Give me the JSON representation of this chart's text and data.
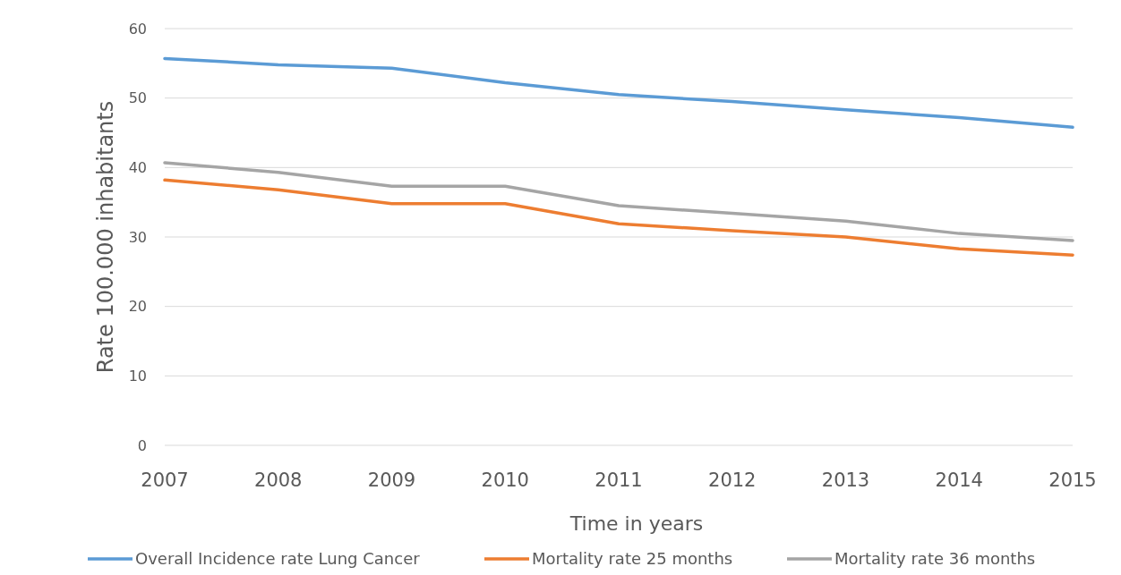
{
  "chart_data": {
    "type": "line",
    "xlabel": "Time in years",
    "ylabel": "Rate 100.000 inhabitants",
    "categories": [
      "2007",
      "2008",
      "2009",
      "2010",
      "2011",
      "2012",
      "2013",
      "2014",
      "2015"
    ],
    "series": [
      {
        "name": "Overall Incidence rate Lung Cancer",
        "color": "#5b9bd5",
        "values": [
          55.7,
          54.8,
          54.3,
          52.2,
          50.5,
          49.5,
          48.3,
          47.2,
          45.8
        ]
      },
      {
        "name": "Mortality rate 25 months",
        "color": "#ed7d31",
        "values": [
          38.2,
          36.8,
          34.8,
          34.8,
          31.9,
          30.9,
          30.0,
          28.3,
          27.4
        ]
      },
      {
        "name": "Mortality rate 36 months",
        "color": "#a5a5a5",
        "values": [
          40.7,
          39.3,
          37.3,
          37.3,
          34.5,
          33.4,
          32.3,
          30.5,
          29.5
        ]
      }
    ],
    "ylim": [
      0,
      60
    ],
    "yticks": [
      0,
      10,
      20,
      30,
      40,
      50,
      60
    ],
    "grid": "y",
    "legend": "bottom",
    "marker": "none",
    "line_style": "solid"
  }
}
